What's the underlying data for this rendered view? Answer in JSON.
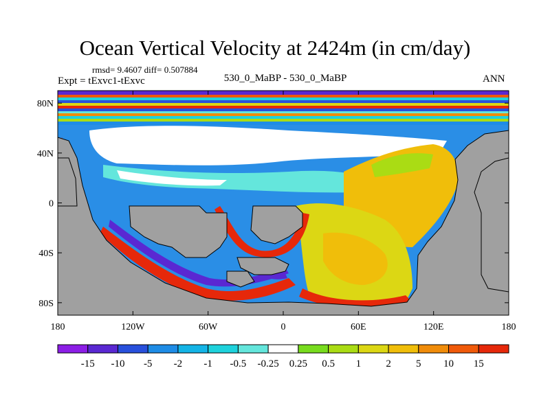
{
  "chart_data": {
    "type": "heatmap",
    "title": "Ocean Vertical Velocity at 2424m (in cm/day)",
    "subtitle_stats": "rmsd= 9.4607 diff= 0.507884",
    "experiment": "Expt = tExvc1-tExvc",
    "case_label": "530_0_MaBP - 530_0_MaBP",
    "season": "ANN",
    "x_ticks": [
      "180",
      "120W",
      "60W",
      "0",
      "60E",
      "120E",
      "180"
    ],
    "x_range": [
      -180,
      180
    ],
    "x_tick_values": [
      -180,
      -120,
      -60,
      0,
      60,
      120,
      180
    ],
    "y_ticks": [
      "80N",
      "40N",
      "0",
      "40S",
      "80S"
    ],
    "y_tick_values": [
      80,
      40,
      0,
      -40,
      -80
    ],
    "y_range": [
      -90,
      90
    ],
    "colorbar": {
      "labels": [
        "-15",
        "-10",
        "-5",
        "-2",
        "-1",
        "-0.5",
        "-0.25",
        "0.25",
        "0.5",
        "1",
        "2",
        "5",
        "10",
        "15"
      ],
      "colors": [
        "#8c1ee6",
        "#5a28d2",
        "#2850dc",
        "#1e8ce6",
        "#14b4e6",
        "#1ed2dc",
        "#64e6dc",
        "#ffffff",
        "#78dc1e",
        "#aadc14",
        "#dcd714",
        "#f0be0a",
        "#f08c0a",
        "#f05a0a",
        "#e6280a"
      ]
    },
    "land_color": "#a0a0a0"
  }
}
